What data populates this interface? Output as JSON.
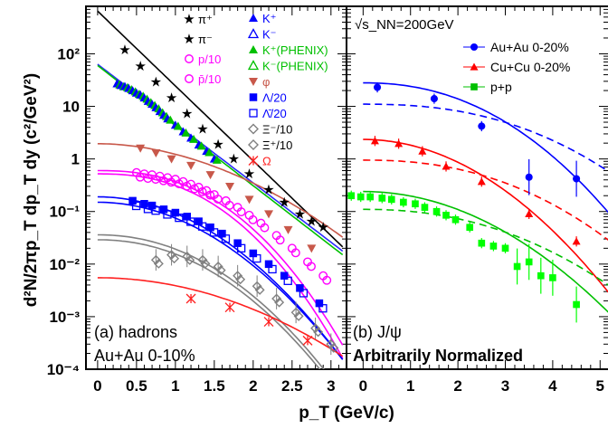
{
  "y_axis_title": "d²N/2πp_T dp_T dy (c²/GeV²)",
  "x_axis_title": "p_T (GeV/c)",
  "chart_data": [
    {
      "type": "scatter",
      "panel_label": "(a) hadrons",
      "panel_sublabel": "Au+Au 0-10%",
      "y_scale": "log",
      "ylim": [
        0.0001,
        800
      ],
      "xlim": [
        -0.15,
        3.2
      ],
      "x_ticks": [
        "0",
        "0.5",
        "1",
        "1.5",
        "2",
        "2.5",
        "3"
      ],
      "y_ticks": [
        "10⁻⁴",
        "10⁻³",
        "10⁻²",
        "10⁻¹",
        "1",
        "10",
        "10²"
      ],
      "legend": [
        "π⁺",
        "π⁻",
        "p/10",
        "p̄/10",
        "K⁺",
        "K⁻",
        "K⁺(PHENIX)",
        "K⁻(PHENIX)",
        "φ",
        "Λ/20",
        "Λ̄/20",
        "Ξ⁻/10",
        "Ξ⁺/10",
        "Ω"
      ],
      "series": [
        {
          "name": "π⁺ / π⁻",
          "color": "#000000",
          "marker": "star",
          "x": [
            0.35,
            0.55,
            0.75,
            0.95,
            1.15,
            1.35,
            1.55,
            1.75,
            1.95,
            2.2,
            2.4,
            2.6,
            2.75,
            2.9
          ],
          "y": [
            120,
            58,
            29,
            14.5,
            7.3,
            3.7,
            1.9,
            1.0,
            0.52,
            0.26,
            0.15,
            0.09,
            0.065,
            0.05
          ]
        },
        {
          "name": "K⁺ / K⁻",
          "color": "#0000ff",
          "marker": "triangle",
          "x": [
            0.25,
            0.3,
            0.35,
            0.4,
            0.45,
            0.5,
            0.55,
            0.6,
            0.65,
            0.7,
            0.75,
            0.8,
            0.85,
            0.9,
            1.0,
            1.1,
            1.2,
            1.3,
            1.4,
            1.5
          ],
          "y": [
            27,
            25,
            24,
            22,
            20,
            18,
            16.5,
            14.5,
            12.5,
            11,
            9.5,
            8,
            6.8,
            5.8,
            4.4,
            3.3,
            2.5,
            1.85,
            1.4,
            1.0
          ]
        },
        {
          "name": "φ",
          "color": "#c8584a",
          "marker": "triangle-down",
          "x": [
            0.55,
            0.75,
            0.95,
            1.2,
            1.45,
            1.7,
            1.95,
            2.2,
            2.45,
            2.75
          ],
          "y": [
            1.6,
            1.3,
            1.0,
            0.75,
            0.5,
            0.3,
            0.17,
            0.09,
            0.045,
            0.02
          ]
        },
        {
          "name": "p/10 / p̄/10",
          "color": "#ff00ff",
          "marker": "circle-open",
          "x": [
            0.5,
            0.6,
            0.7,
            0.8,
            0.9,
            1.0,
            1.1,
            1.2,
            1.3,
            1.4,
            1.5,
            1.65,
            1.8,
            1.95,
            2.1,
            2.3,
            2.5,
            2.7,
            2.9
          ],
          "y": [
            0.55,
            0.52,
            0.5,
            0.47,
            0.44,
            0.41,
            0.37,
            0.33,
            0.29,
            0.25,
            0.21,
            0.16,
            0.12,
            0.085,
            0.06,
            0.035,
            0.02,
            0.011,
            0.006
          ]
        },
        {
          "name": "Λ/20 / Λ̄/20",
          "color": "#0000ff",
          "marker": "square",
          "x": [
            0.45,
            0.6,
            0.7,
            0.85,
            1.0,
            1.15,
            1.3,
            1.45,
            1.6,
            1.8,
            2.0,
            2.2,
            2.4,
            2.6,
            2.85
          ],
          "y": [
            0.16,
            0.14,
            0.13,
            0.11,
            0.095,
            0.08,
            0.065,
            0.05,
            0.038,
            0.025,
            0.016,
            0.01,
            0.006,
            0.0035,
            0.0018
          ]
        },
        {
          "name": "Ξ⁻/10 / Ξ⁺/10",
          "color": "#808080",
          "marker": "diamond",
          "x": [
            0.75,
            0.95,
            1.15,
            1.35,
            1.55,
            1.8,
            2.05,
            2.3,
            2.55,
            2.8,
            3.0
          ],
          "y": [
            0.012,
            0.015,
            0.014,
            0.012,
            0.009,
            0.006,
            0.0038,
            0.0022,
            0.0012,
            0.0006,
            0.0003
          ]
        },
        {
          "name": "Ω",
          "color": "#ff2020",
          "marker": "x",
          "x": [
            1.2,
            1.7,
            2.2,
            2.7
          ],
          "y": [
            0.0022,
            0.0015,
            0.0008,
            0.00035
          ]
        }
      ]
    },
    {
      "type": "scatter",
      "panel_label": "(b) J/ψ",
      "panel_sublabel": "Arbitrarily Normalized",
      "energy_label": "√s_NN=200GeV",
      "y_scale": "log",
      "xlim": [
        -0.35,
        5.3
      ],
      "x_ticks": [
        "0",
        "1",
        "2",
        "3",
        "4",
        "5"
      ],
      "legend": [
        "Au+Au 0-20%",
        "Cu+Cu 0-20%",
        "p+p"
      ],
      "series": [
        {
          "name": "Au+Au 0-20%",
          "color": "#0000ff",
          "marker": "circle",
          "x": [
            0.3,
            1.5,
            2.5,
            3.5,
            4.5
          ],
          "y": [
            23,
            14,
            4.2,
            0.45,
            0.42
          ]
        },
        {
          "name": "Cu+Cu 0-20%",
          "color": "#ff0000",
          "marker": "triangle",
          "x": [
            0.25,
            0.75,
            1.25,
            1.75,
            2.5,
            3.5,
            4.5
          ],
          "y": [
            2.2,
            1.95,
            1.4,
            0.72,
            0.37,
            0.09,
            0.027
          ]
        },
        {
          "name": "p+p",
          "color": "#00ff00",
          "marker": "square",
          "x": [
            -0.25,
            -0.05,
            0.15,
            0.4,
            0.6,
            0.85,
            1.1,
            1.3,
            1.55,
            1.75,
            1.95,
            2.25,
            2.5,
            2.75,
            3.0,
            3.25,
            3.5,
            3.75,
            4.0,
            4.5
          ],
          "y": [
            0.2,
            0.19,
            0.19,
            0.18,
            0.17,
            0.15,
            0.14,
            0.12,
            0.1,
            0.085,
            0.07,
            0.05,
            0.025,
            0.022,
            0.02,
            0.009,
            0.011,
            0.006,
            0.0055,
            0.0017
          ]
        }
      ]
    }
  ]
}
